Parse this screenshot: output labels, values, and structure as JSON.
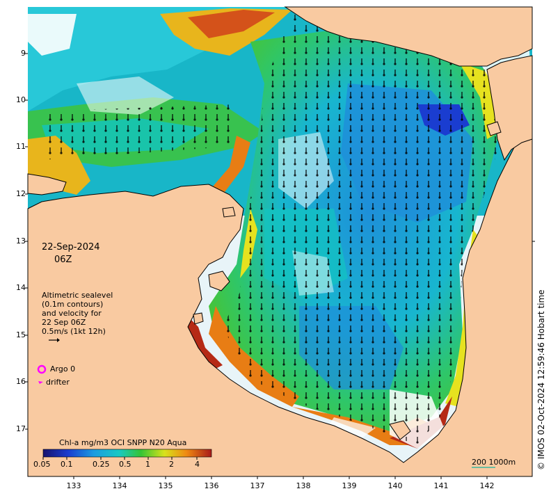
{
  "overlay": {
    "date_line1": "22-Sep-2024",
    "date_line2": "06Z",
    "legend_text": [
      "Altimetric sealevel",
      "(0.1m contours)",
      "and velocity for",
      "22 Sep 06Z",
      "0.5m/s (1kt 12h)"
    ],
    "argo_label": "Argo 0",
    "drifter_label": "drifter",
    "scale_label": "200  1000m",
    "stamp": "© IMOS 02-Oct-2024 12:59:46 Hobart time"
  },
  "colorbar": {
    "title": "Chl-a mg/m3 OCI SNPP N20 Aqua",
    "ticks": [
      "0.05",
      "0.1",
      "0.25",
      "0.5",
      "1",
      "2",
      "4"
    ]
  },
  "axes": {
    "lat_ticks": [
      "9",
      "10",
      "11",
      "12",
      "13",
      "14",
      "15",
      "16",
      "17"
    ],
    "lon_ticks": [
      "133",
      "134",
      "135",
      "136",
      "137",
      "138",
      "139",
      "140",
      "141",
      "142"
    ]
  },
  "colors": {
    "land": "#f9caa1",
    "ocean_deep": "#1e8fd9",
    "ocean_mid": "#12c4c0",
    "coastal_green": "#3ec43a",
    "coastal_yellow": "#e6e21f",
    "coastal_orange": "#e87d14",
    "coastal_red": "#b52a16",
    "argo": "#ff00ff"
  }
}
